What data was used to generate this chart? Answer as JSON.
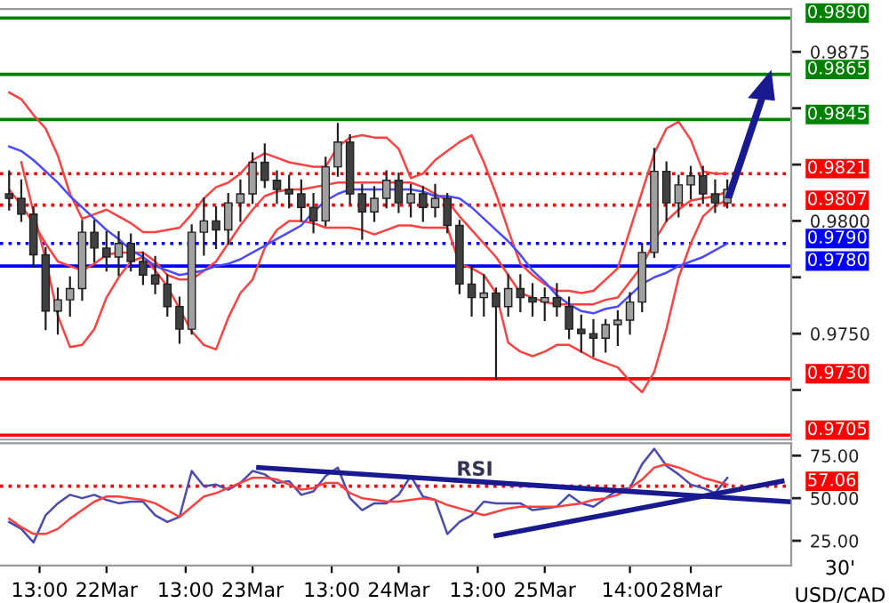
{
  "chart_data": [
    {
      "type": "candlestick",
      "tick_labels": "y",
      "ylim": [
        0.9703,
        0.9894
      ],
      "yticks": [
        {
          "value": 0.9725,
          "label": null
        },
        {
          "value": 0.975,
          "label": "0.9750"
        },
        {
          "value": 0.9775,
          "label": null
        },
        {
          "value": 0.98,
          "label": "0.9800"
        },
        {
          "value": 0.9825,
          "label": null
        },
        {
          "value": 0.985,
          "label": null
        },
        {
          "value": 0.9875,
          "label": "0.9875"
        }
      ],
      "categories": [
        null,
        null,
        null,
        null,
        null,
        null,
        null,
        null,
        null,
        null,
        null,
        null,
        null,
        null,
        null,
        null,
        null,
        null,
        null,
        null,
        null,
        null,
        null,
        null,
        null,
        null,
        null,
        null,
        null,
        null,
        null,
        null,
        null,
        null,
        null,
        null,
        null,
        null,
        null,
        null,
        null,
        null,
        null,
        null,
        null,
        null,
        null,
        null,
        null,
        null,
        null,
        null,
        null,
        null,
        null,
        null,
        null,
        null,
        null,
        null,
        null,
        null,
        null,
        null,
        null,
        null,
        null,
        null,
        null,
        null,
        null,
        null,
        null,
        null,
        null,
        null,
        null,
        null,
        null,
        null,
        null,
        null,
        null,
        null,
        null,
        null,
        null,
        null,
        null,
        null,
        null,
        null,
        null,
        null,
        null,
        null,
        null,
        null,
        null,
        null,
        null,
        null,
        null,
        null,
        null,
        null,
        null,
        null,
        null,
        null,
        null,
        null,
        null,
        null,
        null,
        null,
        null,
        null,
        null,
        null,
        null,
        null,
        null,
        null,
        null,
        null,
        null,
        null,
        null,
        null
      ],
      "ohlc": [
        null,
        [
          0.9812,
          0.9822,
          0.9805,
          0.981
        ],
        null,
        [
          0.981,
          0.9818,
          0.98,
          0.9803
        ],
        null,
        [
          0.9803,
          0.9806,
          0.978,
          0.9785
        ],
        null,
        [
          0.9785,
          0.9788,
          0.9752,
          0.976
        ],
        null,
        [
          0.976,
          0.977,
          0.975,
          0.9765
        ],
        null,
        [
          0.9765,
          0.9775,
          0.9758,
          0.977
        ],
        null,
        [
          0.977,
          0.98,
          0.9765,
          0.9795
        ],
        null,
        [
          0.9795,
          0.98,
          0.9782,
          0.9788
        ],
        null,
        [
          0.9788,
          0.9795,
          0.9778,
          0.9784
        ],
        null,
        [
          0.9784,
          0.9795,
          0.9776,
          0.979
        ],
        null,
        [
          0.979,
          0.9794,
          0.9778,
          0.9782
        ],
        null,
        [
          0.9782,
          0.9786,
          0.9772,
          0.9776
        ],
        null,
        [
          0.9776,
          0.9784,
          0.9768,
          0.9772
        ],
        null,
        [
          0.9772,
          0.9776,
          0.9758,
          0.9762
        ],
        null,
        [
          0.9762,
          0.9766,
          0.9746,
          0.9752
        ],
        null,
        [
          0.9752,
          0.9798,
          0.975,
          0.9795
        ],
        null,
        [
          0.9795,
          0.981,
          0.9785,
          0.98
        ],
        null,
        [
          0.98,
          0.9806,
          0.9788,
          0.9796
        ],
        null,
        [
          0.9796,
          0.9812,
          0.979,
          0.9808
        ],
        null,
        [
          0.9808,
          0.9818,
          0.98,
          0.9812
        ],
        null,
        [
          0.9812,
          0.983,
          0.9808,
          0.9826
        ],
        null,
        [
          0.9826,
          0.9834,
          0.9815,
          0.9818
        ],
        null,
        [
          0.9818,
          0.9822,
          0.9808,
          0.9814
        ],
        null,
        [
          0.9814,
          0.982,
          0.9806,
          0.9812
        ],
        null,
        [
          0.9812,
          0.9818,
          0.98,
          0.9806
        ],
        null,
        [
          0.9806,
          0.9812,
          0.9795,
          0.98
        ],
        null,
        [
          0.98,
          0.9828,
          0.9798,
          0.9824
        ],
        null,
        [
          0.9824,
          0.9843,
          0.982,
          0.9835
        ],
        null,
        [
          0.9835,
          0.9838,
          0.9808,
          0.9812
        ],
        null,
        [
          0.9812,
          0.9816,
          0.9792,
          0.9804
        ],
        null,
        [
          0.9804,
          0.9815,
          0.98,
          0.981
        ],
        null,
        [
          0.981,
          0.9822,
          0.9806,
          0.9818
        ],
        null,
        [
          0.9818,
          0.9821,
          0.9804,
          0.9808
        ],
        null,
        [
          0.9808,
          0.9816,
          0.9802,
          0.9812
        ],
        null,
        [
          0.9812,
          0.9815,
          0.98,
          0.9806
        ],
        null,
        [
          0.9806,
          0.9816,
          0.9802,
          0.981
        ],
        null,
        [
          0.981,
          0.9812,
          0.9795,
          0.9798
        ],
        null,
        [
          0.9798,
          0.98,
          0.9768,
          0.9772
        ],
        null,
        [
          0.9772,
          0.978,
          0.9758,
          0.9766
        ],
        null,
        [
          0.9766,
          0.9776,
          0.9758,
          0.9768
        ],
        null,
        [
          0.9768,
          0.977,
          0.973,
          0.9762
        ],
        null,
        [
          0.9762,
          0.9776,
          0.9758,
          0.977
        ],
        null,
        [
          0.977,
          0.9776,
          0.976,
          0.9766
        ],
        null,
        [
          0.9766,
          0.9772,
          0.9758,
          0.9764
        ],
        null,
        [
          0.9764,
          0.977,
          0.9756,
          0.9766
        ],
        null,
        [
          0.9766,
          0.9772,
          0.9758,
          0.9762
        ],
        null,
        [
          0.9762,
          0.9766,
          0.9748,
          0.9752
        ],
        null,
        [
          0.9752,
          0.9758,
          0.9742,
          0.975
        ],
        null,
        [
          0.975,
          0.9756,
          0.974,
          0.9748
        ],
        null,
        [
          0.9748,
          0.9756,
          0.9742,
          0.9754
        ],
        null,
        [
          0.9754,
          0.976,
          0.9745,
          0.9756
        ],
        null,
        [
          0.9756,
          0.9768,
          0.975,
          0.9764
        ],
        null,
        [
          0.9764,
          0.979,
          0.976,
          0.9786
        ],
        null,
        [
          0.9786,
          0.9832,
          0.9784,
          0.9822
        ],
        null,
        [
          0.9822,
          0.9826,
          0.98,
          0.9808
        ],
        null,
        [
          0.9808,
          0.982,
          0.9802,
          0.9816
        ],
        null,
        [
          0.9816,
          0.9824,
          0.981,
          0.982
        ],
        null,
        [
          0.982,
          0.9824,
          0.9808,
          0.9812
        ],
        null,
        [
          0.9812,
          0.9818,
          0.9804,
          0.9808
        ],
        null,
        [
          0.9808,
          0.9818,
          0.9806,
          0.9814
        ],
        null,
        null,
        null,
        null,
        null,
        null,
        null,
        null,
        null,
        null
      ],
      "colors": [
        null,
        "#404040",
        null,
        "#404040",
        null,
        "#404040",
        null,
        "#404040",
        null,
        "#a0a0a0",
        null,
        "#a0a0a0",
        null,
        "#a0a0a0",
        null,
        "#404040",
        null,
        "#404040",
        null,
        "#a0a0a0",
        null,
        "#404040",
        null,
        "#404040",
        null,
        "#404040",
        null,
        "#404040",
        null,
        "#404040",
        null,
        "#a0a0a0",
        null,
        "#a0a0a0",
        null,
        "#404040",
        null,
        "#a0a0a0",
        null,
        "#a0a0a0",
        null,
        "#a0a0a0",
        null,
        "#404040",
        null,
        "#404040",
        null,
        "#404040",
        null,
        "#404040",
        null,
        "#404040",
        null,
        "#a0a0a0",
        null,
        "#a0a0a0",
        null,
        "#404040",
        null,
        "#404040",
        null,
        "#a0a0a0",
        null,
        "#a0a0a0",
        null,
        "#404040",
        null,
        "#a0a0a0",
        null,
        "#404040",
        null,
        "#a0a0a0",
        null,
        "#404040",
        null,
        "#404040",
        null,
        "#404040",
        null,
        "#a0a0a0",
        null,
        "#404040",
        null,
        "#a0a0a0",
        null,
        "#404040",
        null,
        "#404040",
        null,
        "#a0a0a0",
        null,
        "#404040",
        null,
        "#404040",
        null,
        "#404040",
        null,
        "#404040",
        null,
        "#a0a0a0",
        null,
        "#a0a0a0",
        null,
        "#a0a0a0",
        null,
        "#a0a0a0",
        null,
        "#a0a0a0",
        null,
        "#404040",
        null,
        "#a0a0a0",
        null,
        "#a0a0a0",
        null,
        "#404040",
        null,
        "#404040",
        null,
        "#a0a0a0",
        null,
        null,
        null,
        null,
        null,
        null,
        null,
        null,
        null,
        null
      ],
      "series": [
        {
          "type": "line",
          "color": "#ff4040",
          "values": [
            null,
            0.9857,
            null,
            0.9854,
            null,
            0.9847,
            null,
            0.9841,
            null,
            0.9829,
            null,
            0.9812,
            null,
            0.9801,
            null,
            0.9803,
            null,
            0.9805,
            null,
            0.9802,
            null,
            0.9799,
            null,
            0.9795,
            null,
            0.9795,
            null,
            0.9796,
            null,
            0.9797,
            null,
            0.9803,
            null,
            0.981,
            null,
            0.9815,
            null,
            0.9817,
            null,
            0.9821,
            null,
            0.9827,
            null,
            0.983,
            null,
            0.9828,
            null,
            0.9826,
            null,
            0.9825,
            null,
            0.9824,
            null,
            0.9824,
            null,
            0.9833,
            null,
            0.9837,
            null,
            0.9838,
            null,
            0.9837,
            null,
            0.9837,
            null,
            0.9832,
            null,
            0.9819,
            null,
            0.9821,
            null,
            0.9827,
            null,
            0.9831,
            null,
            0.9835,
            null,
            0.9838,
            null,
            0.9826,
            null,
            0.9812,
            null,
            0.9796,
            null,
            0.9781,
            null,
            0.9776,
            null,
            0.9772,
            null,
            0.9769,
            null,
            0.9769,
            null,
            0.9768,
            null,
            0.9769,
            null,
            0.9774,
            null,
            0.9779,
            null,
            0.9796,
            null,
            0.9813,
            null,
            0.983,
            null,
            0.9841,
            null,
            0.9844,
            null,
            0.9836,
            null,
            0.9822,
            null,
            0.9821,
            null,
            0.9821,
            null,
            null,
            null,
            null,
            null,
            null,
            null,
            null,
            null,
            null
          ]
        },
        {
          "type": "line",
          "color": "#ff4040",
          "values": [
            null,
            null,
            null,
            0.9826,
            null,
            0.9804,
            null,
            0.9783,
            null,
            0.9758,
            null,
            0.9744,
            null,
            0.9745,
            null,
            0.9752,
            null,
            0.9766,
            null,
            0.9775,
            null,
            0.9782,
            null,
            0.9784,
            null,
            0.9778,
            null,
            0.9771,
            null,
            0.9761,
            null,
            0.9751,
            null,
            0.9745,
            null,
            0.9743,
            null,
            0.9757,
            null,
            0.9768,
            null,
            0.9774,
            null,
            0.9788,
            null,
            0.9796,
            null,
            0.98,
            null,
            0.98,
            null,
            0.9799,
            null,
            0.9797,
            null,
            0.9797,
            null,
            0.9797,
            null,
            0.9796,
            null,
            0.9794,
            null,
            0.9796,
            null,
            0.9798,
            null,
            0.9798,
            null,
            0.9797,
            null,
            0.9797,
            null,
            0.9797,
            null,
            0.9781,
            null,
            0.9779,
            null,
            0.9776,
            null,
            0.9768,
            null,
            0.9746,
            null,
            0.9742,
            null,
            0.974,
            null,
            0.9742,
            null,
            0.9745,
            null,
            0.9745,
            null,
            0.9742,
            null,
            0.9739,
            null,
            0.9737,
            null,
            0.9735,
            null,
            0.9729,
            null,
            0.9724,
            null,
            0.9733,
            null,
            0.9752,
            null,
            0.9775,
            null,
            0.979,
            null,
            0.9802,
            null,
            0.9807,
            null,
            0.9809,
            null,
            null,
            null,
            null,
            null,
            null,
            null,
            null,
            null,
            null
          ]
        },
        {
          "type": "line",
          "color": "#ff4040",
          "values": [
            null,
            0.9814,
            null,
            0.9807,
            null,
            0.9799,
            null,
            0.979,
            null,
            0.9782,
            null,
            0.978,
            null,
            0.9778,
            null,
            0.9781,
            null,
            0.9785,
            null,
            0.9786,
            null,
            0.9786,
            null,
            0.9786,
            null,
            0.9782,
            null,
            0.9776,
            null,
            0.9774,
            null,
            0.9774,
            null,
            0.9778,
            null,
            0.9782,
            null,
            0.979,
            null,
            0.9798,
            null,
            0.9805,
            null,
            0.9811,
            null,
            0.9813,
            null,
            0.9814,
            null,
            0.9814,
            null,
            0.9815,
            null,
            0.9816,
            null,
            0.9817,
            null,
            0.9817,
            null,
            0.9817,
            null,
            0.9817,
            null,
            0.9817,
            null,
            0.9817,
            null,
            0.9817,
            null,
            0.9815,
            null,
            0.9812,
            null,
            0.9809,
            null,
            0.9802,
            null,
            0.9796,
            null,
            0.979,
            null,
            0.9784,
            null,
            0.9776,
            null,
            0.9768,
            null,
            0.9766,
            null,
            0.9764,
            null,
            0.9763,
            null,
            0.9763,
            null,
            0.9763,
            null,
            0.9763,
            null,
            0.9765,
            null,
            0.9766,
            null,
            0.9773,
            null,
            0.978,
            null,
            0.9791,
            null,
            0.98,
            null,
            0.9805,
            null,
            0.9809,
            null,
            0.981,
            null,
            0.9811,
            null,
            0.9813,
            null,
            null,
            null,
            null,
            null,
            null,
            null,
            null,
            null,
            null
          ]
        },
        {
          "type": "line",
          "color": "#4a4aff",
          "values": [
            null,
            0.9833,
            null,
            0.9831,
            null,
            0.9827,
            null,
            0.9822,
            null,
            0.9817,
            null,
            0.9811,
            null,
            0.9806,
            null,
            0.9801,
            null,
            0.9796,
            null,
            0.9792,
            null,
            0.9787,
            null,
            0.9784,
            null,
            0.978,
            null,
            0.9778,
            null,
            0.9776,
            null,
            0.9777,
            null,
            0.9778,
            null,
            0.978,
            null,
            0.9781,
            null,
            0.9783,
            null,
            0.9786,
            null,
            0.9789,
            null,
            0.9792,
            null,
            0.9795,
            null,
            0.9798,
            null,
            0.9804,
            null,
            0.9809,
            null,
            0.9812,
            null,
            0.9814,
            null,
            0.9814,
            null,
            0.9814,
            null,
            0.9814,
            null,
            0.9814,
            null,
            0.9814,
            null,
            0.9813,
            null,
            0.9811,
            null,
            0.9811,
            null,
            0.981,
            null,
            0.9806,
            null,
            0.9801,
            null,
            0.9796,
            null,
            0.9791,
            null,
            0.9785,
            null,
            0.9778,
            null,
            0.9773,
            null,
            0.9767,
            null,
            0.9763,
            null,
            0.976,
            null,
            0.9759,
            null,
            0.9761,
            null,
            0.9762,
            null,
            0.9767,
            null,
            0.9772,
            null,
            0.9775,
            null,
            0.9777,
            null,
            0.978,
            null,
            0.9782,
            null,
            0.9784,
            null,
            0.9787,
            null,
            0.979,
            null,
            null,
            null,
            null,
            null,
            null,
            null,
            null,
            null,
            null
          ]
        }
      ],
      "ref_lines": [
        {
          "axis": "y",
          "value": 0.989,
          "label": "0.9890",
          "color": "#008000",
          "line_style": "solid"
        },
        {
          "axis": "y",
          "value": 0.9865,
          "label": "0.9865",
          "color": "#008000",
          "line_style": "solid"
        },
        {
          "axis": "y",
          "value": 0.9845,
          "label": "0.9845",
          "color": "#008000",
          "line_style": "solid"
        },
        {
          "axis": "y",
          "value": 0.9821,
          "label": "0.9821",
          "color": "#ff0000",
          "line_style": "dotted"
        },
        {
          "axis": "y",
          "value": 0.9807,
          "label": "0.9807",
          "color": "#ff0000",
          "line_style": "dotted"
        },
        {
          "axis": "y",
          "value": 0.979,
          "label": "0.9790",
          "color": "#0000ff",
          "line_style": "dotted"
        },
        {
          "axis": "y",
          "value": 0.978,
          "label": "0.9780",
          "color": "#0000ff",
          "line_style": "solid"
        },
        {
          "axis": "y",
          "value": 0.973,
          "label": "0.9730",
          "color": "#ff0000",
          "line_style": "solid"
        },
        {
          "axis": "y",
          "value": 0.9705,
          "label": "0.9705",
          "color": "#ff0000",
          "line_style": "solid"
        }
      ]
    },
    {
      "type": "line",
      "ylim": [
        10.4,
        82.3
      ],
      "categories": [
        null,
        null,
        null,
        null,
        null,
        null,
        "13:00",
        null,
        null,
        null,
        null,
        null,
        null,
        null,
        null,
        null,
        null,
        "22Mar",
        null,
        null,
        null,
        null,
        null,
        null,
        null,
        null,
        null,
        null,
        null,
        null,
        "13:00",
        null,
        null,
        null,
        null,
        null,
        null,
        null,
        null,
        null,
        null,
        "23Mar",
        null,
        null,
        null,
        null,
        null,
        null,
        null,
        null,
        null,
        null,
        null,
        null,
        "13:00",
        null,
        null,
        null,
        null,
        null,
        null,
        null,
        null,
        null,
        null,
        "24Mar",
        null,
        null,
        null,
        null,
        null,
        null,
        null,
        null,
        null,
        null,
        null,
        null,
        "13:00",
        null,
        null,
        null,
        null,
        null,
        null,
        null,
        null,
        null,
        null,
        "25Mar",
        null,
        null,
        null,
        null,
        null,
        null,
        null,
        null,
        null,
        null,
        null,
        null,
        null,
        "14:00",
        null,
        null,
        null,
        null,
        null,
        null,
        null,
        null,
        null,
        "28Mar",
        null,
        null,
        null,
        null,
        null,
        null,
        null,
        null,
        null,
        null,
        null,
        null,
        null,
        null,
        null,
        null
      ],
      "yticks": [
        {
          "value": 25,
          "label": "25.00"
        },
        {
          "value": 50,
          "label": "50.00"
        },
        {
          "value": 75,
          "label": "75.00"
        }
      ],
      "series": [
        {
          "color": "#4a4ab0",
          "values": [
            null,
            36,
            null,
            32,
            null,
            24,
            null,
            40,
            null,
            47,
            null,
            52,
            null,
            50,
            null,
            52,
            null,
            49,
            null,
            47,
            null,
            48,
            null,
            48,
            null,
            40,
            null,
            36,
            null,
            39,
            null,
            66,
            null,
            57,
            null,
            58,
            null,
            55,
            null,
            59,
            null,
            66,
            null,
            64,
            null,
            59,
            null,
            60,
            null,
            52,
            null,
            54,
            null,
            63,
            null,
            68,
            null,
            50,
            null,
            43,
            null,
            47,
            null,
            47,
            null,
            52,
            null,
            63,
            null,
            51,
            null,
            49,
            null,
            29,
            null,
            36,
            null,
            40,
            null,
            48,
            null,
            47,
            null,
            47,
            null,
            47,
            null,
            43,
            null,
            44,
            null,
            45,
            null,
            52,
            null,
            47,
            null,
            45,
            null,
            50,
            null,
            55,
            null,
            56,
            null,
            70,
            null,
            79,
            null,
            69,
            null,
            64,
            null,
            58,
            null,
            56,
            null,
            53,
            null,
            62,
            null,
            null,
            null,
            null,
            null,
            null,
            null,
            null,
            null,
            null
          ]
        },
        {
          "color": "#ff4040",
          "values": [
            null,
            38,
            null,
            33,
            null,
            29,
            null,
            29,
            null,
            32,
            null,
            38,
            null,
            43,
            null,
            48,
            null,
            51,
            null,
            51,
            null,
            50,
            null,
            49,
            null,
            47,
            null,
            43,
            null,
            39,
            null,
            45,
            null,
            51,
            null,
            53,
            null,
            56,
            null,
            59,
            null,
            62,
            null,
            62,
            null,
            61,
            null,
            58,
            null,
            55,
            null,
            56,
            null,
            59,
            null,
            59,
            null,
            53,
            null,
            50,
            null,
            49,
            null,
            48,
            null,
            48,
            null,
            49,
            null,
            50,
            null,
            49,
            null,
            46,
            null,
            44,
            null,
            42,
            null,
            40,
            null,
            42,
            null,
            44,
            null,
            45,
            null,
            45,
            null,
            45,
            null,
            45,
            null,
            46,
            null,
            47,
            null,
            49,
            null,
            50,
            null,
            52,
            null,
            56,
            null,
            61,
            null,
            68,
            null,
            70,
            null,
            68,
            null,
            65,
            null,
            62,
            null,
            60,
            null,
            58,
            null,
            null,
            null,
            null,
            null,
            null,
            null,
            null,
            null,
            null
          ]
        },
        {
          "color": "#1a1a90",
          "values": [
            null,
            null,
            null,
            null,
            null,
            null,
            null,
            null,
            null,
            null,
            null,
            null,
            null,
            null,
            null,
            null,
            null,
            null,
            null,
            null,
            null,
            null,
            null,
            null,
            null,
            null,
            null,
            null,
            null,
            null,
            null,
            null,
            null,
            null,
            null,
            null,
            null,
            null,
            null,
            null,
            null,
            null,
            68,
            null,
            null,
            null,
            null,
            null,
            null,
            null,
            null,
            null,
            null,
            null,
            null,
            null,
            null,
            null,
            null,
            null,
            null,
            null,
            null,
            null,
            null,
            null,
            null,
            null,
            null,
            null,
            null,
            null,
            null,
            null,
            null,
            null,
            null,
            null,
            null,
            null,
            null,
            null,
            null,
            null,
            null,
            null,
            null,
            null,
            null,
            null,
            null,
            null,
            null,
            null,
            null,
            null,
            null,
            null,
            null,
            null,
            null,
            null,
            null,
            null,
            null,
            null,
            null,
            null,
            null,
            null,
            null,
            null,
            null,
            null,
            null,
            null,
            null,
            null,
            null,
            null,
            null,
            null,
            null,
            null,
            null,
            null,
            null,
            null,
            null,
            48
          ]
        },
        {
          "color": "#1a1a90",
          "values": [
            null,
            null,
            null,
            null,
            null,
            null,
            null,
            null,
            null,
            null,
            null,
            null,
            null,
            null,
            null,
            null,
            null,
            null,
            null,
            null,
            null,
            null,
            null,
            null,
            null,
            null,
            null,
            null,
            null,
            null,
            null,
            null,
            null,
            null,
            null,
            null,
            null,
            null,
            null,
            null,
            null,
            null,
            null,
            null,
            null,
            null,
            null,
            null,
            null,
            null,
            null,
            null,
            null,
            null,
            null,
            null,
            null,
            null,
            null,
            null,
            null,
            null,
            null,
            null,
            null,
            null,
            null,
            null,
            null,
            null,
            null,
            null,
            null,
            null,
            null,
            null,
            null,
            null,
            null,
            null,
            null,
            28,
            null,
            null,
            null,
            null,
            null,
            null,
            null,
            null,
            null,
            null,
            null,
            null,
            null,
            null,
            null,
            null,
            null,
            null,
            null,
            null,
            null,
            null,
            null,
            null,
            null,
            null,
            null,
            null,
            null,
            null,
            null,
            null,
            null,
            null,
            null,
            null,
            null,
            null,
            null,
            null,
            null,
            null,
            null,
            null,
            null,
            null,
            60,
            null
          ]
        }
      ],
      "ref_lines": [
        {
          "axis": "y",
          "value": 57.06,
          "label": "57.06",
          "color": "#ff0000",
          "line_style": "dotted"
        }
      ],
      "annotations": [
        "RSI",
        "30'",
        "USD/CAD"
      ]
    }
  ]
}
